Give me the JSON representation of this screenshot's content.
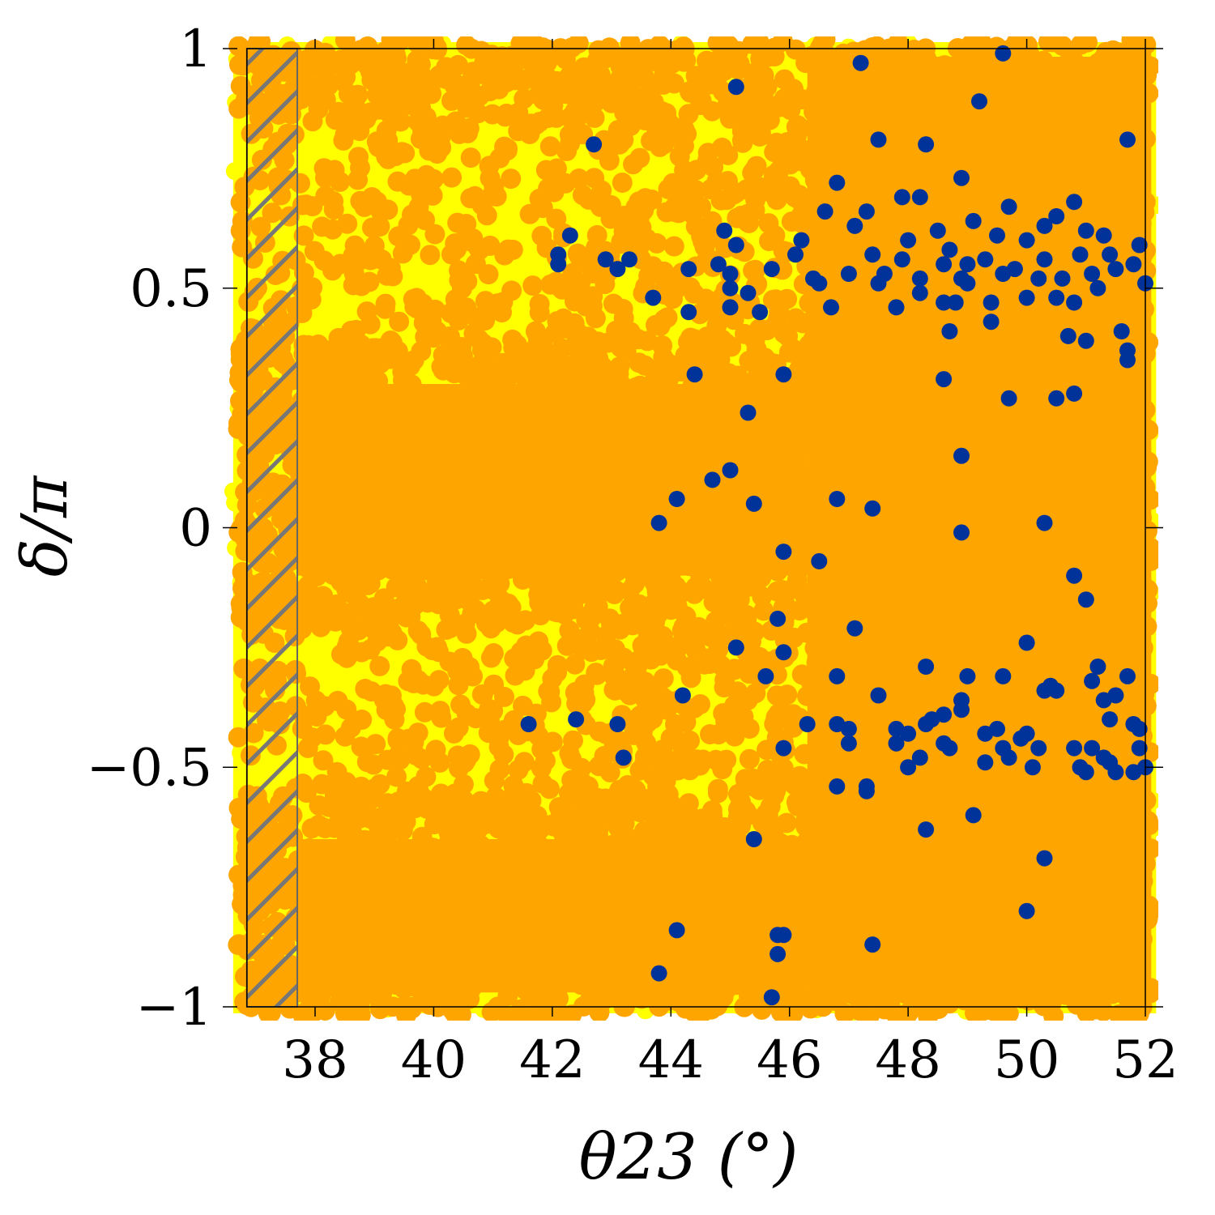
{
  "chart_data": {
    "type": "scatter",
    "title": "",
    "xlabel": "θ23 (°)",
    "ylabel": "δ/π",
    "xlim": [
      36.7,
      52.1
    ],
    "ylim": [
      -1,
      1
    ],
    "xticks": [
      38,
      40,
      42,
      44,
      46,
      48,
      50,
      52
    ],
    "xtick_labels": [
      "38",
      "40",
      "42",
      "44",
      "46",
      "48",
      "50",
      "52"
    ],
    "yticks": [
      1,
      0.5,
      0,
      -0.5,
      -1
    ],
    "ytick_labels": [
      "1",
      "0.5",
      "0",
      "−0.5",
      "−1"
    ],
    "grid": false,
    "excluded_region": {
      "x": [
        36.7,
        37.7
      ],
      "y": [
        -1,
        1
      ],
      "pattern": "diagonal hatch"
    },
    "series": [
      {
        "color": "#ffff00",
        "description": "dense background fill",
        "x_range": [
          36.7,
          52.1
        ],
        "y_range": [
          -1,
          1
        ]
      },
      {
        "color": "#ffa500",
        "description": "dense fill over nearly entire region",
        "x_range": [
          36.7,
          52.1
        ],
        "y_range": [
          -1,
          1
        ]
      },
      {
        "color": "#003399",
        "points": [
          [
            49.6,
            0.99
          ],
          [
            47.2,
            0.97
          ],
          [
            45.1,
            0.92
          ],
          [
            49.2,
            0.89
          ],
          [
            42.7,
            0.8
          ],
          [
            47.5,
            0.81
          ],
          [
            48.3,
            0.8
          ],
          [
            51.7,
            0.81
          ],
          [
            48.9,
            0.73
          ],
          [
            46.8,
            0.72
          ],
          [
            47.9,
            0.69
          ],
          [
            48.2,
            0.69
          ],
          [
            50.8,
            0.68
          ],
          [
            49.7,
            0.67
          ],
          [
            46.6,
            0.66
          ],
          [
            47.3,
            0.66
          ],
          [
            48.5,
            0.62
          ],
          [
            49.1,
            0.64
          ],
          [
            49.5,
            0.61
          ],
          [
            47.1,
            0.63
          ],
          [
            48.0,
            0.6
          ],
          [
            50.5,
            0.65
          ],
          [
            42.3,
            0.61
          ],
          [
            44.9,
            0.62
          ],
          [
            46.2,
            0.6
          ],
          [
            47.4,
            0.57
          ],
          [
            48.7,
            0.58
          ],
          [
            49.3,
            0.56
          ],
          [
            50.0,
            0.6
          ],
          [
            50.3,
            0.63
          ],
          [
            51.0,
            0.62
          ],
          [
            51.3,
            0.61
          ],
          [
            51.9,
            0.59
          ],
          [
            42.1,
            0.57
          ],
          [
            42.9,
            0.56
          ],
          [
            43.3,
            0.56
          ],
          [
            45.1,
            0.59
          ],
          [
            46.1,
            0.57
          ],
          [
            47.9,
            0.56
          ],
          [
            48.6,
            0.55
          ],
          [
            49.0,
            0.55
          ],
          [
            49.8,
            0.54
          ],
          [
            50.2,
            0.52
          ],
          [
            50.6,
            0.52
          ],
          [
            51.1,
            0.53
          ],
          [
            51.5,
            0.54
          ],
          [
            51.8,
            0.55
          ],
          [
            52.0,
            0.51
          ],
          [
            42.1,
            0.55
          ],
          [
            43.1,
            0.54
          ],
          [
            44.3,
            0.54
          ],
          [
            44.8,
            0.55
          ],
          [
            45.0,
            0.53
          ],
          [
            45.7,
            0.54
          ],
          [
            46.4,
            0.52
          ],
          [
            47.0,
            0.53
          ],
          [
            47.6,
            0.53
          ],
          [
            48.2,
            0.52
          ],
          [
            48.9,
            0.52
          ],
          [
            49.6,
            0.53
          ],
          [
            50.3,
            0.56
          ],
          [
            50.9,
            0.57
          ],
          [
            51.4,
            0.57
          ],
          [
            49.0,
            0.51
          ],
          [
            46.5,
            0.51
          ],
          [
            47.5,
            0.51
          ],
          [
            48.2,
            0.49
          ],
          [
            50.5,
            0.48
          ],
          [
            51.2,
            0.5
          ],
          [
            43.7,
            0.48
          ],
          [
            45.3,
            0.49
          ],
          [
            45.0,
            0.5
          ],
          [
            44.3,
            0.45
          ],
          [
            45.0,
            0.46
          ],
          [
            45.5,
            0.45
          ],
          [
            46.7,
            0.46
          ],
          [
            47.8,
            0.46
          ],
          [
            48.6,
            0.47
          ],
          [
            48.8,
            0.47
          ],
          [
            49.4,
            0.47
          ],
          [
            50.0,
            0.48
          ],
          [
            50.8,
            0.47
          ],
          [
            48.7,
            0.41
          ],
          [
            49.4,
            0.43
          ],
          [
            50.7,
            0.4
          ],
          [
            51.6,
            0.41
          ],
          [
            51.0,
            0.39
          ],
          [
            51.7,
            0.37
          ],
          [
            51.7,
            0.35
          ],
          [
            44.4,
            0.32
          ],
          [
            45.9,
            0.32
          ],
          [
            48.6,
            0.31
          ],
          [
            49.7,
            0.27
          ],
          [
            50.5,
            0.27
          ],
          [
            50.8,
            0.28
          ],
          [
            45.3,
            0.24
          ],
          [
            48.9,
            0.15
          ],
          [
            45.0,
            0.12
          ],
          [
            44.7,
            0.1
          ],
          [
            44.1,
            0.06
          ],
          [
            46.8,
            0.06
          ],
          [
            47.4,
            0.04
          ],
          [
            45.4,
            0.05
          ],
          [
            43.8,
            0.01
          ],
          [
            50.3,
            0.01
          ],
          [
            48.9,
            -0.01
          ],
          [
            45.9,
            -0.05
          ],
          [
            46.5,
            -0.07
          ],
          [
            50.8,
            -0.1
          ],
          [
            51.0,
            -0.15
          ],
          [
            45.8,
            -0.19
          ],
          [
            47.1,
            -0.21
          ],
          [
            45.1,
            -0.25
          ],
          [
            45.9,
            -0.26
          ],
          [
            50.0,
            -0.24
          ],
          [
            48.3,
            -0.29
          ],
          [
            51.2,
            -0.29
          ],
          [
            45.6,
            -0.31
          ],
          [
            46.8,
            -0.31
          ],
          [
            49.0,
            -0.31
          ],
          [
            49.6,
            -0.31
          ],
          [
            51.1,
            -0.32
          ],
          [
            51.7,
            -0.31
          ],
          [
            50.4,
            -0.33
          ],
          [
            50.3,
            -0.34
          ],
          [
            50.5,
            -0.34
          ],
          [
            47.5,
            -0.35
          ],
          [
            48.9,
            -0.36
          ],
          [
            51.5,
            -0.35
          ],
          [
            51.3,
            -0.36
          ],
          [
            44.2,
            -0.35
          ],
          [
            48.9,
            -0.38
          ],
          [
            51.4,
            -0.4
          ],
          [
            41.6,
            -0.41
          ],
          [
            42.4,
            -0.4
          ],
          [
            43.1,
            -0.41
          ],
          [
            46.3,
            -0.41
          ],
          [
            46.8,
            -0.41
          ],
          [
            47.0,
            -0.42
          ],
          [
            47.8,
            -0.42
          ],
          [
            48.0,
            -0.43
          ],
          [
            48.4,
            -0.4
          ],
          [
            48.6,
            -0.39
          ],
          [
            48.3,
            -0.41
          ],
          [
            49.3,
            -0.43
          ],
          [
            49.5,
            -0.42
          ],
          [
            49.9,
            -0.44
          ],
          [
            50.0,
            -0.43
          ],
          [
            51.8,
            -0.41
          ],
          [
            51.9,
            -0.42
          ],
          [
            47.0,
            -0.45
          ],
          [
            47.8,
            -0.45
          ],
          [
            48.6,
            -0.45
          ],
          [
            48.7,
            -0.46
          ],
          [
            49.6,
            -0.46
          ],
          [
            50.2,
            -0.46
          ],
          [
            50.8,
            -0.46
          ],
          [
            51.1,
            -0.46
          ],
          [
            51.9,
            -0.46
          ],
          [
            43.2,
            -0.48
          ],
          [
            45.9,
            -0.46
          ],
          [
            48.2,
            -0.48
          ],
          [
            49.3,
            -0.49
          ],
          [
            49.7,
            -0.48
          ],
          [
            51.3,
            -0.48
          ],
          [
            51.4,
            -0.49
          ],
          [
            48.0,
            -0.5
          ],
          [
            50.1,
            -0.5
          ],
          [
            50.9,
            -0.5
          ],
          [
            51.0,
            -0.51
          ],
          [
            51.5,
            -0.51
          ],
          [
            51.8,
            -0.51
          ],
          [
            52.0,
            -0.5
          ],
          [
            46.8,
            -0.54
          ],
          [
            47.3,
            -0.54
          ],
          [
            47.3,
            -0.55
          ],
          [
            49.1,
            -0.6
          ],
          [
            48.3,
            -0.63
          ],
          [
            45.4,
            -0.65
          ],
          [
            50.3,
            -0.69
          ],
          [
            50.0,
            -0.8
          ],
          [
            44.1,
            -0.84
          ],
          [
            45.8,
            -0.85
          ],
          [
            45.9,
            -0.85
          ],
          [
            47.4,
            -0.87
          ],
          [
            45.8,
            -0.89
          ],
          [
            43.8,
            -0.93
          ],
          [
            45.7,
            -0.98
          ]
        ]
      }
    ]
  }
}
